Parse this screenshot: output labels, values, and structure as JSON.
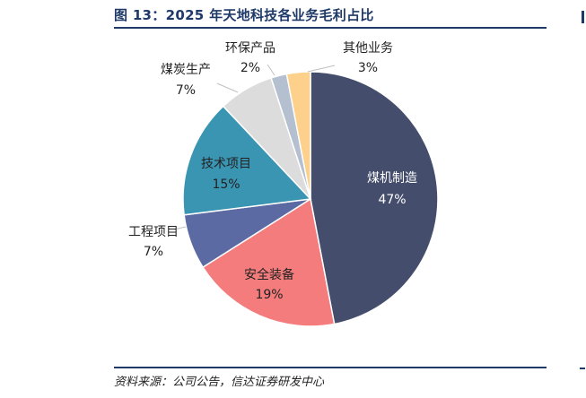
{
  "header": {
    "title": "图 13：2025 年天地科技各业务毛利占比"
  },
  "footer": {
    "source": "资料来源：公司公告，信达证券研发中心"
  },
  "chart_data": {
    "type": "pie",
    "title": "图 13：2025 年天地科技各业务毛利占比",
    "start_angle_deg": 90,
    "direction": "clockwise",
    "slices": [
      {
        "name": "煤机制造",
        "value": 47,
        "label": "47%",
        "color": "#444d6b",
        "label_inside": true,
        "label_color": "#ffffff"
      },
      {
        "name": "安全装备",
        "value": 19,
        "label": "19%",
        "color": "#f47c7c",
        "label_inside": true,
        "label_color": "#222222"
      },
      {
        "name": "工程项目",
        "value": 7,
        "label": "7%",
        "color": "#5b6aa3",
        "label_inside": false,
        "label_color": "#222222"
      },
      {
        "name": "技术项目",
        "value": 15,
        "label": "15%",
        "color": "#3a95b3",
        "label_inside": true,
        "label_color": "#222222"
      },
      {
        "name": "煤炭生产",
        "value": 7,
        "label": "7%",
        "color": "#dcdcdc",
        "label_inside": false,
        "label_color": "#222222"
      },
      {
        "name": "环保产品",
        "value": 2,
        "label": "2%",
        "color": "#b4bfd0",
        "label_inside": false,
        "label_color": "#222222"
      },
      {
        "name": "其他业务",
        "value": 3,
        "label": "3%",
        "color": "#fdd08c",
        "label_inside": false,
        "label_color": "#222222"
      }
    ]
  }
}
